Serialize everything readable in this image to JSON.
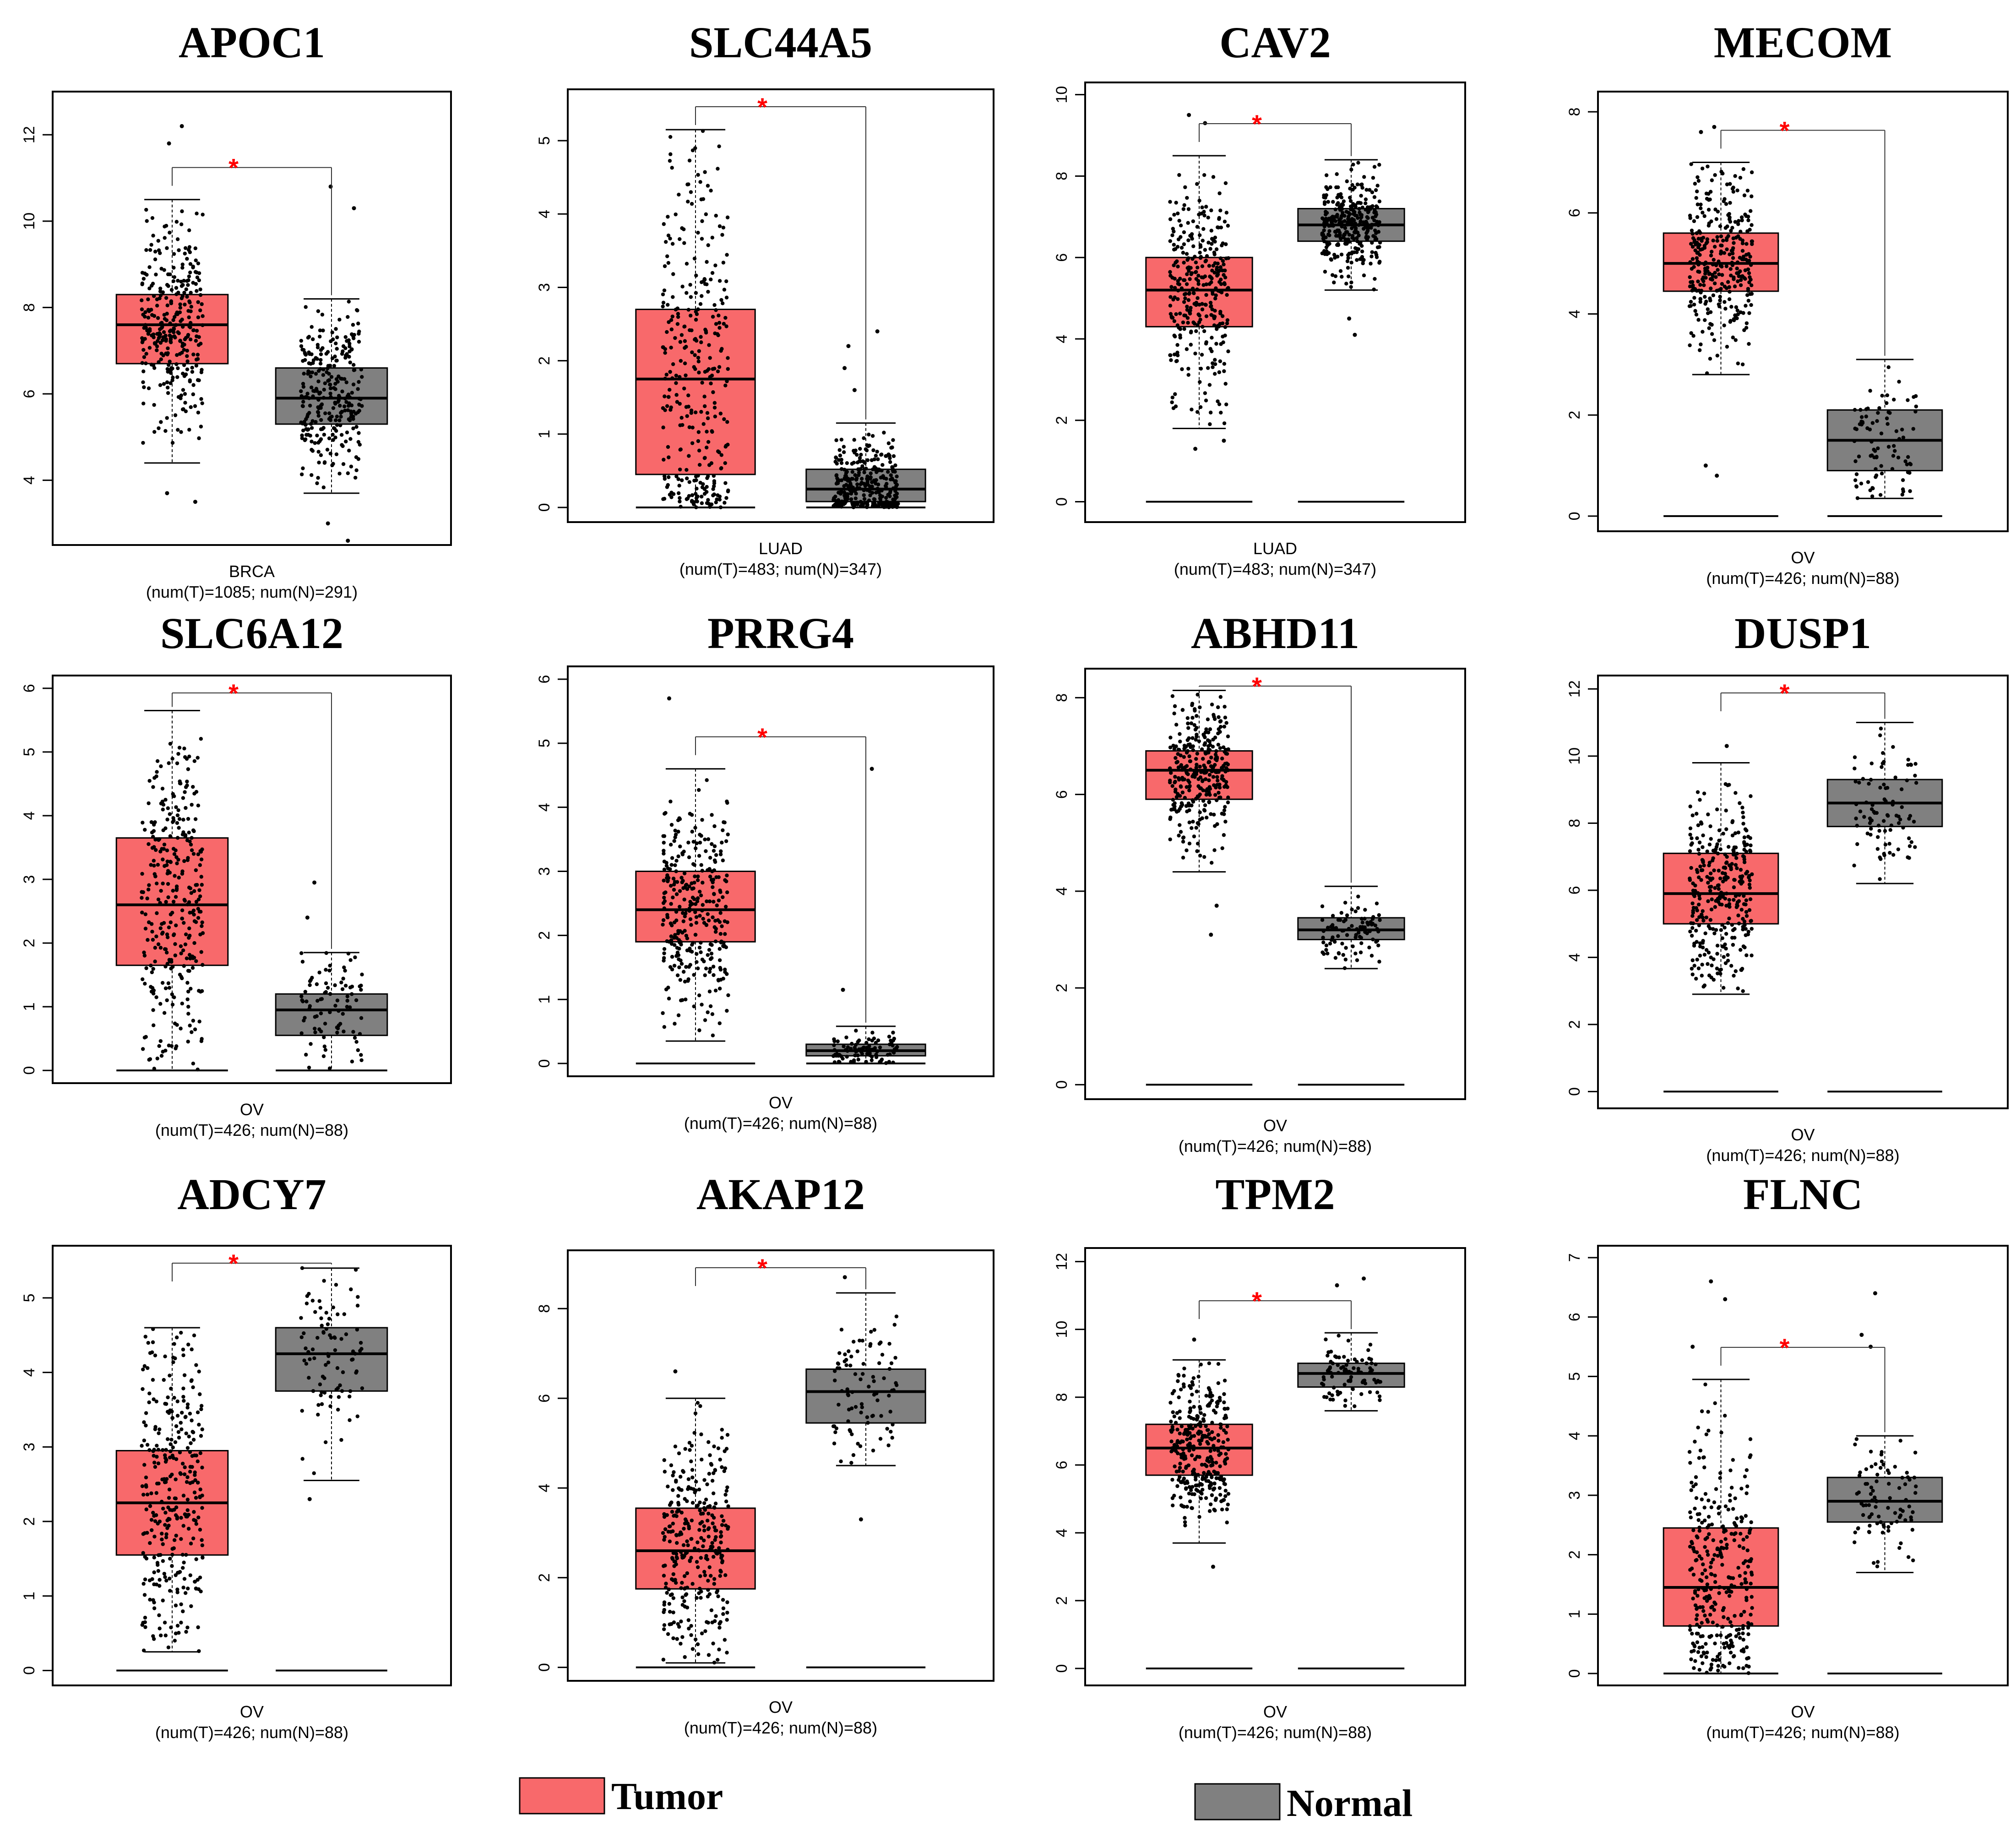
{
  "chart_data": [
    {
      "type": "box",
      "title": "APOC1",
      "dataset": "BRCA",
      "sample_text": "(num(T)=1085; num(N)=291)",
      "n_tumor": 1085,
      "n_normal": 291,
      "y_range": [
        2.5,
        13.0
      ],
      "y_ticks": [
        "4",
        "6",
        "8",
        "10",
        "12"
      ],
      "significance": "*",
      "tumor": {
        "min": 4.4,
        "q1": 6.7,
        "median": 7.6,
        "q3": 8.3,
        "max": 10.5
      },
      "tumor_outliers": [
        12.2,
        11.8,
        3.7,
        3.5
      ],
      "normal": {
        "min": 3.7,
        "q1": 5.3,
        "median": 5.9,
        "q3": 6.6,
        "max": 8.2
      },
      "normal_outliers": [
        10.8,
        10.3,
        2.6,
        3.0
      ]
    },
    {
      "type": "box",
      "title": "SLC44A5",
      "dataset": "LUAD",
      "sample_text": "(num(T)=483; num(N)=347)",
      "n_tumor": 483,
      "n_normal": 347,
      "y_range": [
        -0.2,
        5.7
      ],
      "y_ticks": [
        "0",
        "1",
        "2",
        "3",
        "4",
        "5"
      ],
      "significance": "*",
      "tumor": {
        "min": 0.0,
        "q1": 0.45,
        "median": 1.75,
        "q3": 2.7,
        "max": 5.15
      },
      "tumor_outliers": [],
      "normal": {
        "min": 0.0,
        "q1": 0.08,
        "median": 0.25,
        "q3": 0.52,
        "max": 1.15
      },
      "normal_outliers": [
        2.4,
        2.2,
        1.9,
        1.6
      ]
    },
    {
      "type": "box",
      "title": "CAV2",
      "dataset": "LUAD",
      "sample_text": "(num(T)=483; num(N)=347)",
      "n_tumor": 483,
      "n_normal": 347,
      "y_range": [
        -0.5,
        10.3
      ],
      "y_ticks": [
        "0",
        "2",
        "4",
        "6",
        "8",
        "10"
      ],
      "significance": "*",
      "tumor": {
        "min": 1.8,
        "q1": 4.3,
        "median": 5.2,
        "q3": 6.0,
        "max": 8.5
      },
      "tumor_outliers": [
        9.5,
        9.3,
        1.3,
        1.5
      ],
      "tumor_zero_line": true,
      "normal": {
        "min": 5.2,
        "q1": 6.4,
        "median": 6.8,
        "q3": 7.2,
        "max": 8.4
      },
      "normal_outliers": [
        4.5,
        4.1
      ],
      "normal_zero_line": true
    },
    {
      "type": "box",
      "title": "MECOM",
      "dataset": "OV",
      "sample_text": "(num(T)=426; num(N)=88)",
      "n_tumor": 426,
      "n_normal": 88,
      "y_range": [
        -0.3,
        8.4
      ],
      "y_ticks": [
        "0",
        "2",
        "4",
        "6",
        "8"
      ],
      "significance": "*",
      "tumor": {
        "min": 2.8,
        "q1": 4.45,
        "median": 5.0,
        "q3": 5.6,
        "max": 7.0
      },
      "tumor_outliers": [
        7.6,
        7.7,
        1.0,
        0.8
      ],
      "tumor_zero_line": true,
      "normal": {
        "min": 0.35,
        "q1": 0.9,
        "median": 1.5,
        "q3": 2.1,
        "max": 3.1
      },
      "normal_outliers": [],
      "normal_zero_line": true
    },
    {
      "type": "box",
      "title": "SLC6A12",
      "dataset": "OV",
      "sample_text": "(num(T)=426; num(N)=88)",
      "n_tumor": 426,
      "n_normal": 88,
      "y_range": [
        -0.2,
        6.2
      ],
      "y_ticks": [
        "0",
        "1",
        "2",
        "3",
        "4",
        "5",
        "6"
      ],
      "significance": "*",
      "tumor": {
        "min": 0.0,
        "q1": 1.65,
        "median": 2.6,
        "q3": 3.65,
        "max": 5.65
      },
      "tumor_outliers": [],
      "tumor_zero_line": true,
      "normal": {
        "min": 0.0,
        "q1": 0.55,
        "median": 0.95,
        "q3": 1.2,
        "max": 1.85
      },
      "normal_outliers": [
        2.95,
        2.4
      ],
      "normal_zero_line": true
    },
    {
      "type": "box",
      "title": "PRRG4",
      "dataset": "OV",
      "sample_text": "(num(T)=426; num(N)=88)",
      "n_tumor": 426,
      "n_normal": 88,
      "y_range": [
        -0.2,
        6.2
      ],
      "y_ticks": [
        "0",
        "1",
        "2",
        "3",
        "4",
        "5",
        "6"
      ],
      "significance": "*",
      "tumor": {
        "min": 0.35,
        "q1": 1.9,
        "median": 2.4,
        "q3": 3.0,
        "max": 4.6
      },
      "tumor_outliers": [
        5.7
      ],
      "tumor_zero_line": true,
      "normal": {
        "min": 0.0,
        "q1": 0.12,
        "median": 0.2,
        "q3": 0.3,
        "max": 0.58
      },
      "normal_outliers": [
        4.6,
        1.15
      ],
      "normal_zero_line": true
    },
    {
      "type": "box",
      "title": "ABHD11",
      "dataset": "OV",
      "sample_text": "(num(T)=426; num(N)=88)",
      "n_tumor": 426,
      "n_normal": 88,
      "y_range": [
        -0.3,
        8.6
      ],
      "y_ticks": [
        "0",
        "2",
        "4",
        "6",
        "8"
      ],
      "significance": "*",
      "tumor": {
        "min": 4.4,
        "q1": 5.9,
        "median": 6.5,
        "q3": 6.9,
        "max": 8.15
      },
      "tumor_outliers": [
        3.1,
        3.7
      ],
      "tumor_zero_line": true,
      "normal": {
        "min": 2.4,
        "q1": 3.0,
        "median": 3.2,
        "q3": 3.45,
        "max": 4.1
      },
      "normal_outliers": [],
      "normal_zero_line": true
    },
    {
      "type": "box",
      "title": "DUSP1",
      "dataset": "OV",
      "sample_text": "(num(T)=426; num(N)=88)",
      "n_tumor": 426,
      "n_normal": 88,
      "y_range": [
        -0.5,
        12.4
      ],
      "y_ticks": [
        "0",
        "2",
        "4",
        "6",
        "8",
        "10",
        "12"
      ],
      "significance": "*",
      "tumor": {
        "min": 2.9,
        "q1": 5.0,
        "median": 5.9,
        "q3": 7.1,
        "max": 9.8
      },
      "tumor_outliers": [
        10.3
      ],
      "tumor_zero_line": true,
      "normal": {
        "min": 6.2,
        "q1": 7.9,
        "median": 8.6,
        "q3": 9.3,
        "max": 11.0
      },
      "normal_outliers": [],
      "normal_zero_line": true
    },
    {
      "type": "box",
      "title": "ADCY7",
      "dataset": "OV",
      "sample_text": "(num(T)=426; num(N)=88)",
      "n_tumor": 426,
      "n_normal": 88,
      "y_range": [
        -0.2,
        5.7
      ],
      "y_ticks": [
        "0",
        "1",
        "2",
        "3",
        "4",
        "5"
      ],
      "significance": "*",
      "tumor": {
        "min": 0.25,
        "q1": 1.55,
        "median": 2.25,
        "q3": 2.95,
        "max": 4.6
      },
      "tumor_outliers": [],
      "tumor_zero_line": true,
      "normal": {
        "min": 2.55,
        "q1": 3.75,
        "median": 4.25,
        "q3": 4.6,
        "max": 5.4
      },
      "normal_outliers": [
        2.3
      ],
      "normal_zero_line": true
    },
    {
      "type": "box",
      "title": "AKAP12",
      "dataset": "OV",
      "sample_text": "(num(T)=426; num(N)=88)",
      "n_tumor": 426,
      "n_normal": 88,
      "y_range": [
        -0.3,
        9.3
      ],
      "y_ticks": [
        "0",
        "2",
        "4",
        "6",
        "8"
      ],
      "significance": "*",
      "tumor": {
        "min": 0.1,
        "q1": 1.75,
        "median": 2.6,
        "q3": 3.55,
        "max": 6.0
      },
      "tumor_outliers": [
        6.6
      ],
      "tumor_zero_line": true,
      "normal": {
        "min": 4.5,
        "q1": 5.45,
        "median": 6.15,
        "q3": 6.65,
        "max": 8.35
      },
      "normal_outliers": [
        8.7,
        3.3
      ],
      "normal_zero_line": true
    },
    {
      "type": "box",
      "title": "TPM2",
      "dataset": "OV",
      "sample_text": "(num(T)=426; num(N)=88)",
      "n_tumor": 426,
      "n_normal": 88,
      "y_range": [
        -0.5,
        12.4
      ],
      "y_ticks": [
        "0",
        "2",
        "4",
        "6",
        "8",
        "10",
        "12"
      ],
      "significance": "*",
      "tumor": {
        "min": 3.7,
        "q1": 5.7,
        "median": 6.5,
        "q3": 7.2,
        "max": 9.1
      },
      "tumor_outliers": [
        9.7,
        3.0
      ],
      "tumor_zero_line": true,
      "normal": {
        "min": 7.6,
        "q1": 8.3,
        "median": 8.7,
        "q3": 9.0,
        "max": 9.9
      },
      "normal_outliers": [
        11.5,
        11.3
      ],
      "normal_zero_line": true
    },
    {
      "type": "box",
      "title": "FLNC",
      "dataset": "OV",
      "sample_text": "(num(T)=426; num(N)=88)",
      "n_tumor": 426,
      "n_normal": 88,
      "y_range": [
        -0.2,
        7.2
      ],
      "y_ticks": [
        "0",
        "1",
        "2",
        "3",
        "4",
        "5",
        "6",
        "7"
      ],
      "significance": "*",
      "tumor": {
        "min": 0.0,
        "q1": 0.8,
        "median": 1.45,
        "q3": 2.45,
        "max": 4.95
      },
      "tumor_outliers": [
        6.6,
        6.3,
        5.5
      ],
      "tumor_zero_line": true,
      "normal": {
        "min": 1.7,
        "q1": 2.55,
        "median": 2.9,
        "q3": 3.3,
        "max": 4.0
      },
      "normal_outliers": [
        6.4,
        5.7,
        5.5
      ],
      "normal_zero_line": true
    }
  ],
  "legend": {
    "tumor_label": "Tumor",
    "normal_label": "Normal",
    "tumor_color": "#F8696B",
    "normal_color": "#808080"
  },
  "colors": {
    "significance": "#FF0000",
    "points": "#000000"
  }
}
